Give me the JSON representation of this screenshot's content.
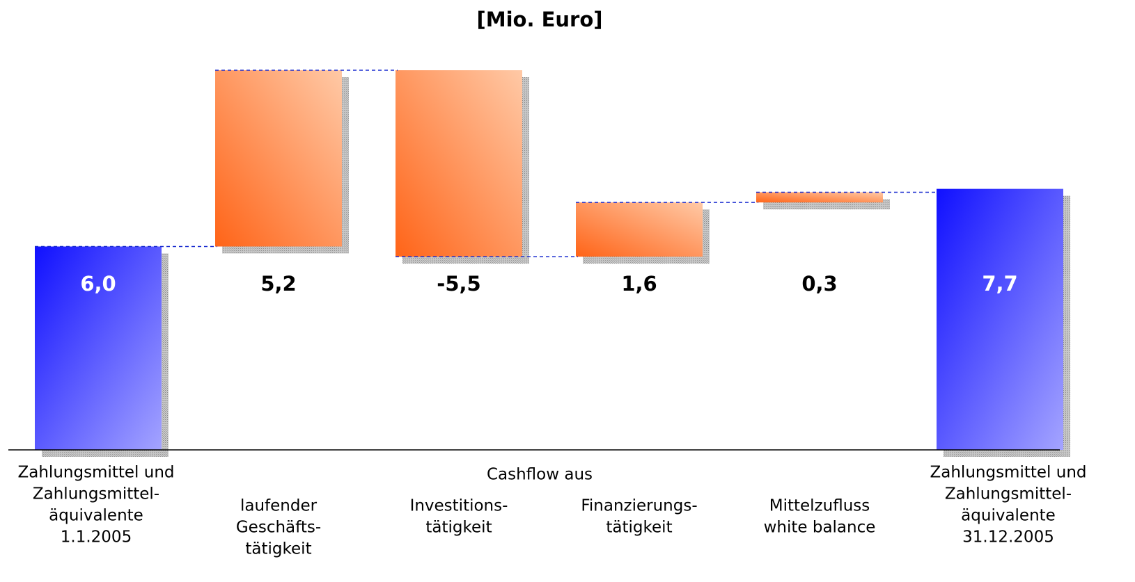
{
  "chart_data": {
    "type": "waterfall",
    "title": "[Mio. Euro]",
    "annotation": "Cashflow aus",
    "categories": [
      [
        "Zahlungsmittel und",
        "Zahlungsmittel-",
        "äquivalente",
        "1.1.2005"
      ],
      [
        "laufender",
        "Geschäfts-",
        "tätigkeit"
      ],
      [
        "Investitions-",
        "tätigkeit"
      ],
      [
        "Finanzierungs-",
        "tätigkeit"
      ],
      [
        "Mittelzufluss",
        "white balance"
      ],
      [
        "Zahlungsmittel und",
        "Zahlungsmittel-",
        "äquivalente",
        "31.12.2005"
      ]
    ],
    "values": [
      6.0,
      5.2,
      -5.5,
      1.6,
      0.3,
      7.7
    ],
    "value_labels": [
      "6,0",
      "5,2",
      "-5,5",
      "1,6",
      "0,3",
      "7,7"
    ],
    "measure": [
      "absolute",
      "relative",
      "relative",
      "relative",
      "relative",
      "total"
    ],
    "total_color": "#1010ff",
    "delta_color": "#ff6418",
    "connector_color": "#1c2fd0"
  }
}
